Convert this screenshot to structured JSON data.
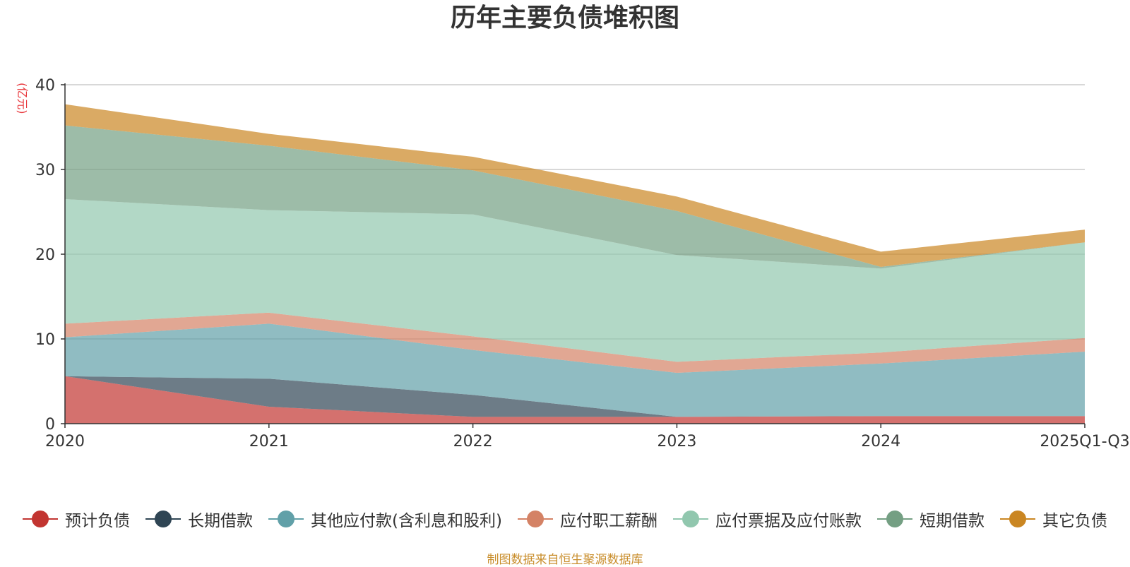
{
  "chart_data": {
    "type": "area",
    "stacked": true,
    "title": "历年主要负债堆积图",
    "ylabel": "(亿元)",
    "xlabel": "",
    "categories": [
      "2020",
      "2021",
      "2022",
      "2023",
      "2024",
      "2025Q1-Q3"
    ],
    "ylim": [
      0,
      40
    ],
    "yticks": [
      0,
      10,
      20,
      30,
      40
    ],
    "grid": true,
    "legend_position": "bottom",
    "series": [
      {
        "name": "预计负债",
        "color": "#c23531",
        "values": [
          5.6,
          2.0,
          0.8,
          0.8,
          0.9,
          0.9
        ]
      },
      {
        "name": "长期借款",
        "color": "#2f4554",
        "values": [
          0.0,
          3.3,
          2.6,
          0.0,
          0.0,
          0.0
        ]
      },
      {
        "name": "其他应付款(含利息和股利)",
        "color": "#61a0a8",
        "values": [
          4.6,
          6.5,
          5.3,
          5.2,
          6.2,
          7.6
        ]
      },
      {
        "name": "应付职工薪酬",
        "color": "#d48265",
        "values": [
          1.6,
          1.3,
          1.6,
          1.3,
          1.3,
          1.6
        ]
      },
      {
        "name": "应付票据及应付账款",
        "color": "#91c7ae",
        "values": [
          14.7,
          12.1,
          14.4,
          12.6,
          9.9,
          11.3
        ]
      },
      {
        "name": "短期借款",
        "color": "#749f83",
        "values": [
          8.7,
          7.6,
          5.2,
          5.2,
          0.2,
          0.0
        ]
      },
      {
        "name": "其它负债",
        "color": "#ca8622",
        "values": [
          2.5,
          1.4,
          1.6,
          1.7,
          1.8,
          1.5
        ]
      }
    ]
  },
  "source_text": "制图数据来自恒生聚源数据库"
}
